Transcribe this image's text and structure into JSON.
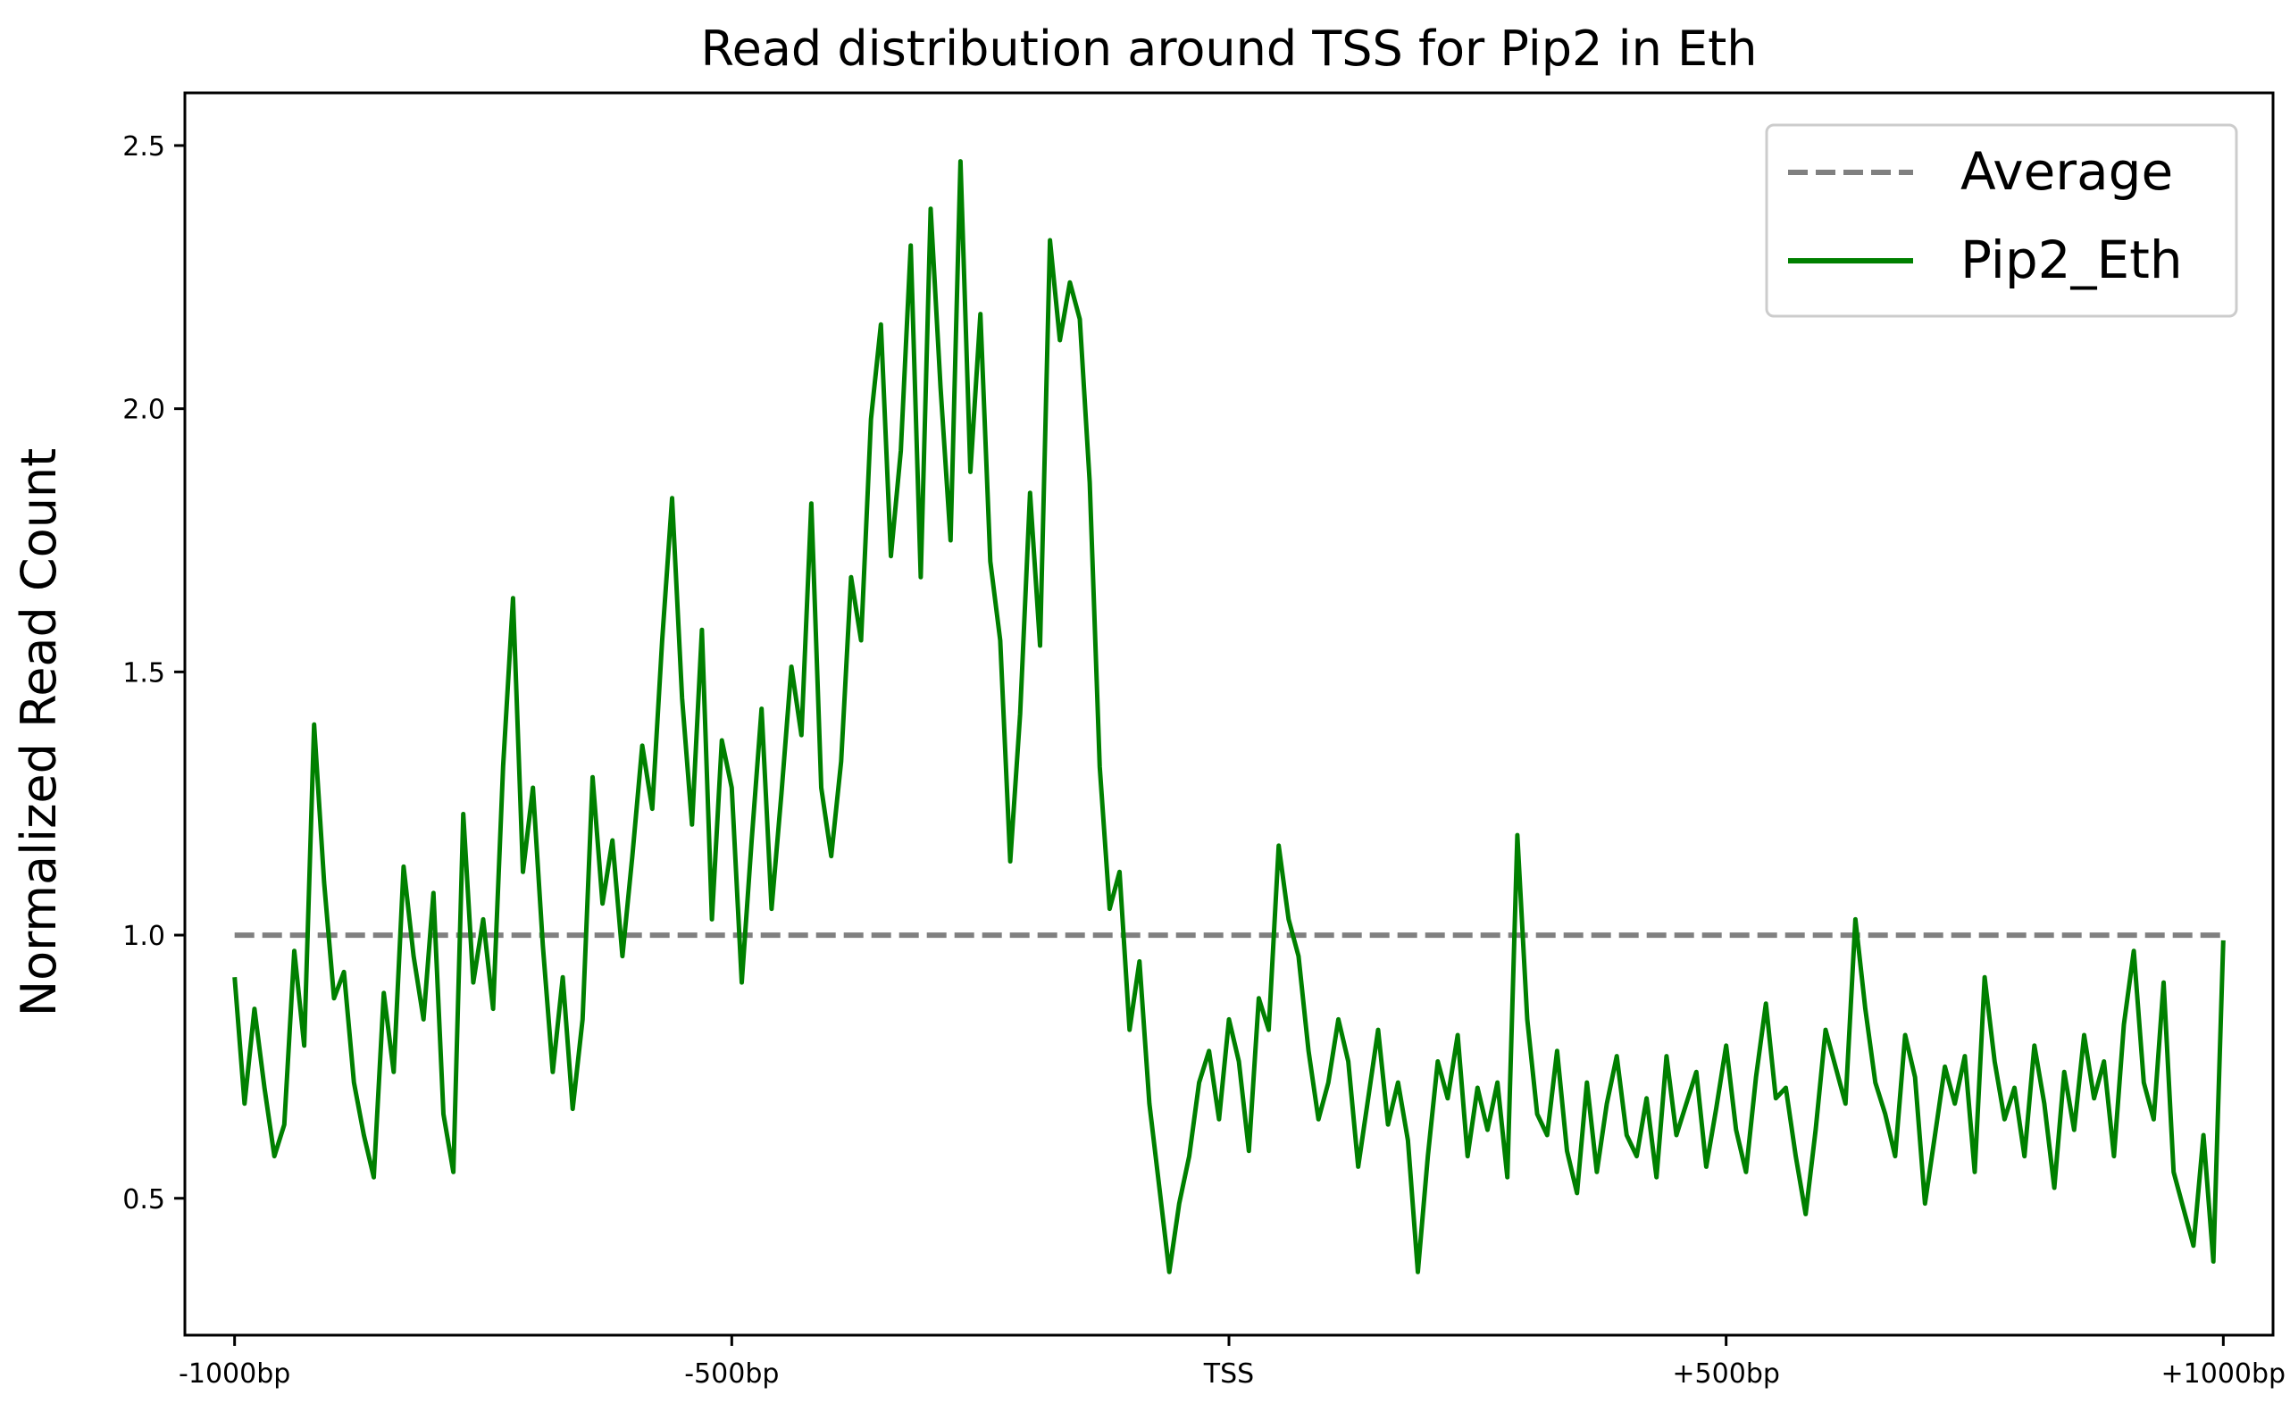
{
  "chart_data": {
    "type": "line",
    "title": "Read distribution around TSS for Pip2 in Eth",
    "xlabel": "",
    "ylabel": "Normalized Read Count",
    "xlim": [
      -1050,
      1050
    ],
    "ylim": [
      0.24,
      2.6
    ],
    "x_ticks": [
      {
        "value": -1000,
        "label": "-1000bp"
      },
      {
        "value": -500,
        "label": "-500bp"
      },
      {
        "value": 0,
        "label": "TSS"
      },
      {
        "value": 500,
        "label": "+500bp"
      },
      {
        "value": 1000,
        "label": "+1000bp"
      }
    ],
    "y_ticks": [
      {
        "value": 0.5,
        "label": "0.5"
      },
      {
        "value": 1.0,
        "label": "1.0"
      },
      {
        "value": 1.5,
        "label": "1.5"
      },
      {
        "value": 2.0,
        "label": "2.0"
      },
      {
        "value": 2.5,
        "label": "2.5"
      }
    ],
    "grid": false,
    "legend": {
      "position": "top-right"
    },
    "series": [
      {
        "name": "Average",
        "style": "dashed",
        "color": "#808080",
        "x": [
          -1000,
          1000
        ],
        "y": [
          1.0,
          1.0
        ]
      },
      {
        "name": "Pip2_Eth",
        "style": "solid",
        "color": "#008000",
        "x": [
          -1000,
          -990,
          -980,
          -970,
          -960,
          -950,
          -940,
          -930,
          -920,
          -910,
          -900,
          -890,
          -880,
          -870,
          -860,
          -850,
          -840,
          -830,
          -820,
          -810,
          -800,
          -790,
          -780,
          -770,
          -760,
          -750,
          -740,
          -730,
          -720,
          -710,
          -700,
          -690,
          -680,
          -670,
          -660,
          -650,
          -640,
          -630,
          -620,
          -610,
          -600,
          -590,
          -580,
          -570,
          -560,
          -550,
          -540,
          -530,
          -520,
          -510,
          -500,
          -490,
          -480,
          -470,
          -460,
          -450,
          -440,
          -430,
          -420,
          -410,
          -400,
          -390,
          -380,
          -370,
          -360,
          -350,
          -340,
          -330,
          -320,
          -310,
          -300,
          -290,
          -280,
          -270,
          -260,
          -250,
          -240,
          -230,
          -220,
          -210,
          -200,
          -190,
          -180,
          -170,
          -160,
          -150,
          -140,
          -130,
          -120,
          -110,
          -100,
          -90,
          -80,
          -70,
          -60,
          -50,
          -40,
          -30,
          -20,
          -10,
          0,
          10,
          20,
          30,
          40,
          50,
          60,
          70,
          80,
          90,
          100,
          110,
          120,
          130,
          140,
          150,
          160,
          170,
          180,
          190,
          200,
          210,
          220,
          230,
          240,
          250,
          260,
          270,
          280,
          290,
          300,
          310,
          320,
          330,
          340,
          350,
          360,
          370,
          380,
          390,
          400,
          410,
          420,
          430,
          440,
          450,
          460,
          470,
          480,
          490,
          500,
          510,
          520,
          530,
          540,
          550,
          560,
          570,
          580,
          590,
          600,
          610,
          620,
          630,
          640,
          650,
          660,
          670,
          680,
          690,
          700,
          710,
          720,
          730,
          740,
          750,
          760,
          770,
          780,
          790,
          800,
          810,
          820,
          830,
          840,
          850,
          860,
          870,
          880,
          890,
          900,
          910,
          920,
          930,
          940,
          950,
          960,
          970,
          980,
          990,
          1000
        ],
        "y": [
          0.92,
          0.68,
          0.86,
          0.71,
          0.58,
          0.64,
          0.97,
          0.79,
          1.4,
          1.1,
          0.88,
          0.93,
          0.72,
          0.62,
          0.54,
          0.89,
          0.74,
          1.13,
          0.96,
          0.84,
          1.08,
          0.66,
          0.55,
          1.23,
          0.91,
          1.03,
          0.86,
          1.32,
          1.64,
          1.12,
          1.28,
          0.98,
          0.74,
          0.92,
          0.67,
          0.84,
          1.3,
          1.06,
          1.18,
          0.96,
          1.15,
          1.36,
          1.24,
          1.56,
          1.83,
          1.45,
          1.21,
          1.58,
          1.03,
          1.37,
          1.28,
          0.91,
          1.18,
          1.43,
          1.05,
          1.27,
          1.51,
          1.38,
          1.82,
          1.28,
          1.15,
          1.33,
          1.68,
          1.56,
          1.98,
          2.16,
          1.72,
          1.92,
          2.31,
          1.68,
          2.38,
          2.04,
          1.75,
          2.47,
          1.88,
          2.18,
          1.71,
          1.56,
          1.14,
          1.42,
          1.84,
          1.55,
          2.32,
          2.13,
          2.24,
          2.17,
          1.86,
          1.32,
          1.05,
          1.12,
          0.82,
          0.95,
          0.68,
          0.52,
          0.36,
          0.49,
          0.58,
          0.72,
          0.78,
          0.65,
          0.84,
          0.76,
          0.59,
          0.88,
          0.82,
          1.17,
          1.03,
          0.96,
          0.78,
          0.65,
          0.72,
          0.84,
          0.76,
          0.56,
          0.69,
          0.82,
          0.64,
          0.72,
          0.61,
          0.36,
          0.58,
          0.76,
          0.69,
          0.81,
          0.58,
          0.71,
          0.63,
          0.72,
          0.54,
          1.19,
          0.84,
          0.66,
          0.62,
          0.78,
          0.59,
          0.51,
          0.72,
          0.55,
          0.68,
          0.77,
          0.62,
          0.58,
          0.69,
          0.54,
          0.77,
          0.62,
          0.68,
          0.74,
          0.56,
          0.67,
          0.79,
          0.63,
          0.55,
          0.73,
          0.87,
          0.69,
          0.71,
          0.58,
          0.47,
          0.63,
          0.82,
          0.75,
          0.68,
          1.03,
          0.86,
          0.72,
          0.66,
          0.58,
          0.81,
          0.73,
          0.49,
          0.62,
          0.75,
          0.68,
          0.77,
          0.55,
          0.92,
          0.76,
          0.65,
          0.71,
          0.58,
          0.79,
          0.68,
          0.52,
          0.74,
          0.63,
          0.81,
          0.69,
          0.76,
          0.58,
          0.83,
          0.97,
          0.72,
          0.65,
          0.91,
          0.55,
          0.48,
          0.41,
          0.62,
          0.38,
          0.99
        ]
      }
    ]
  }
}
